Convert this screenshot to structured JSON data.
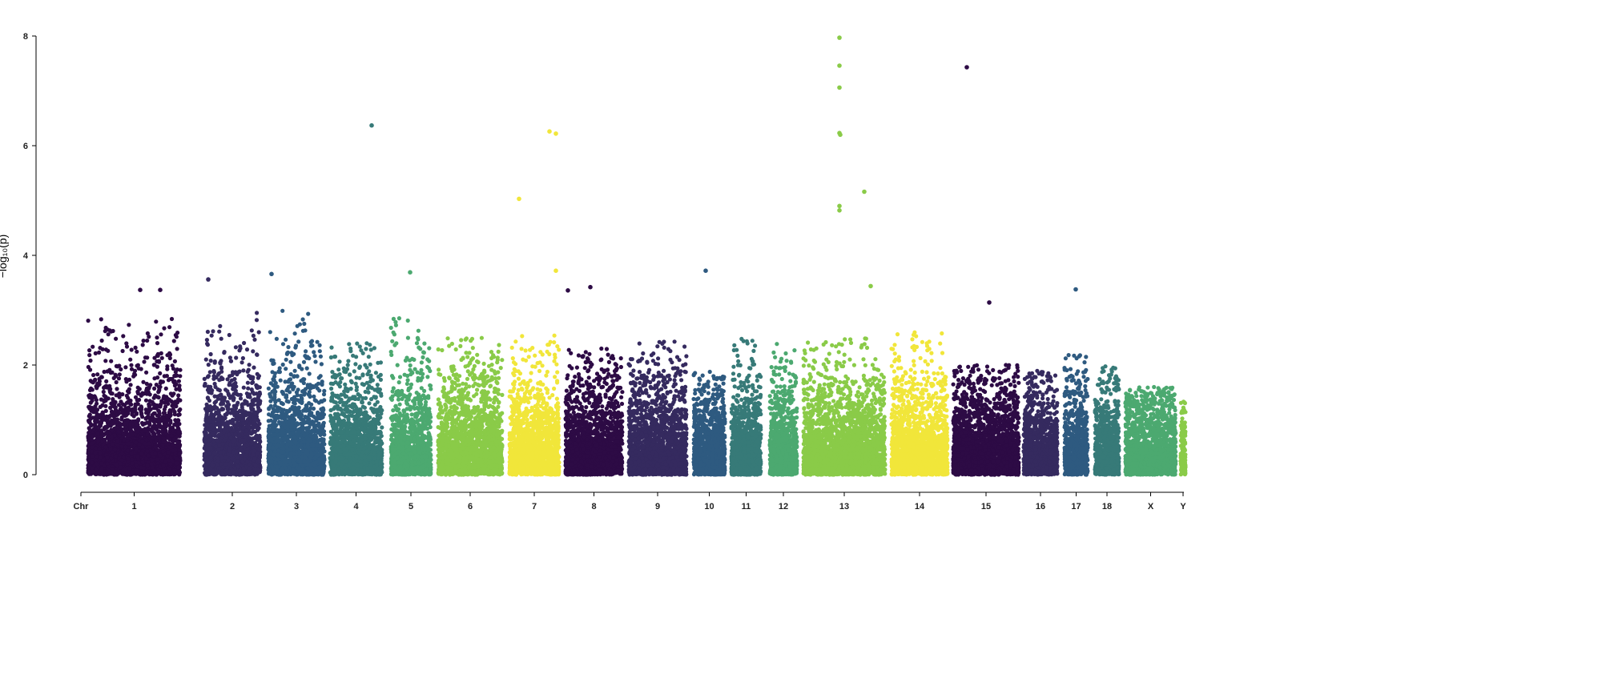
{
  "chart_data": {
    "type": "scatter",
    "subtype": "manhattan",
    "title": "",
    "xlabel": "",
    "ylabel": "−log₁₀(p)",
    "ylim": [
      0,
      8
    ],
    "y_ticks": [
      "0",
      "2",
      "4",
      "6",
      "8"
    ],
    "x_axis_start_label": "Chr",
    "grid": false,
    "legend": "none",
    "chromosomes": [
      {
        "name": "1",
        "span": [
          110,
          225
        ],
        "max": 2.9,
        "color": "#2d0b45"
      },
      {
        "name": "2",
        "span": [
          255,
          325
        ],
        "max": 3.0,
        "color": "#352a5f"
      },
      {
        "name": "3",
        "span": [
          335,
          405
        ],
        "max": 3.0,
        "color": "#2e5a80"
      },
      {
        "name": "4",
        "span": [
          412,
          477
        ],
        "max": 2.4,
        "color": "#377a78"
      },
      {
        "name": "5",
        "span": [
          488,
          538
        ],
        "max": 3.0,
        "color": "#4ca970"
      },
      {
        "name": "6",
        "span": [
          547,
          627
        ],
        "max": 2.5,
        "color": "#8acb48"
      },
      {
        "name": "7",
        "span": [
          636,
          698
        ],
        "max": 2.6,
        "color": "#f1e63a"
      },
      {
        "name": "8",
        "span": [
          706,
          777
        ],
        "max": 2.3,
        "color": "#2d0b45"
      },
      {
        "name": "9",
        "span": [
          785,
          857
        ],
        "max": 2.5,
        "color": "#352a5f"
      },
      {
        "name": "10",
        "span": [
          866,
          905
        ],
        "max": 1.9,
        "color": "#2e5a80"
      },
      {
        "name": "11",
        "span": [
          913,
          950
        ],
        "max": 2.5,
        "color": "#377a78"
      },
      {
        "name": "12",
        "span": [
          961,
          995
        ],
        "max": 2.4,
        "color": "#4ca970"
      },
      {
        "name": "13",
        "span": [
          1003,
          1105
        ],
        "max": 2.5,
        "color": "#8acb48"
      },
      {
        "name": "14",
        "span": [
          1113,
          1183
        ],
        "max": 2.6,
        "color": "#f1e63a"
      },
      {
        "name": "15",
        "span": [
          1190,
          1272
        ],
        "max": 2.0,
        "color": "#2d0b45"
      },
      {
        "name": "16",
        "span": [
          1278,
          1320
        ],
        "max": 1.9,
        "color": "#352a5f"
      },
      {
        "name": "17",
        "span": [
          1329,
          1358
        ],
        "max": 2.3,
        "color": "#2e5a80"
      },
      {
        "name": "18",
        "span": [
          1367,
          1397
        ],
        "max": 2.0,
        "color": "#377a78"
      },
      {
        "name": "X",
        "span": [
          1405,
          1468
        ],
        "max": 1.6,
        "color": "#4ca970"
      },
      {
        "name": "Y",
        "span": [
          1474,
          1480
        ],
        "max": 1.4,
        "color": "#8acb48"
      }
    ],
    "peaks": [
      {
        "chr": "1",
        "pos": 175,
        "y": 3.37
      },
      {
        "chr": "1",
        "pos": 200,
        "y": 3.37
      },
      {
        "chr": "2",
        "pos": 260,
        "y": 3.56
      },
      {
        "chr": "3",
        "pos": 339,
        "y": 3.66
      },
      {
        "chr": "4",
        "pos": 464,
        "y": 6.37
      },
      {
        "chr": "5",
        "pos": 512,
        "y": 3.69
      },
      {
        "chr": "7",
        "pos": 648,
        "y": 5.03
      },
      {
        "chr": "7",
        "pos": 686,
        "y": 6.26
      },
      {
        "chr": "7",
        "pos": 694,
        "y": 6.22
      },
      {
        "chr": "7",
        "pos": 694,
        "y": 3.72
      },
      {
        "chr": "8",
        "pos": 709,
        "y": 3.36
      },
      {
        "chr": "8",
        "pos": 737,
        "y": 3.42
      },
      {
        "chr": "10",
        "pos": 881,
        "y": 3.72
      },
      {
        "chr": "13",
        "pos": 1048,
        "y": 7.97
      },
      {
        "chr": "13",
        "pos": 1048,
        "y": 7.46
      },
      {
        "chr": "13",
        "pos": 1048,
        "y": 7.06
      },
      {
        "chr": "13",
        "pos": 1048,
        "y": 6.23
      },
      {
        "chr": "13",
        "pos": 1049,
        "y": 6.2
      },
      {
        "chr": "13",
        "pos": 1048,
        "y": 4.9
      },
      {
        "chr": "13",
        "pos": 1048,
        "y": 4.82
      },
      {
        "chr": "13",
        "pos": 1079,
        "y": 5.16
      },
      {
        "chr": "13",
        "pos": 1087,
        "y": 3.44
      },
      {
        "chr": "15",
        "pos": 1207,
        "y": 7.43
      },
      {
        "chr": "15",
        "pos": 1235,
        "y": 3.14
      },
      {
        "chr": "17",
        "pos": 1343,
        "y": 3.38
      }
    ]
  }
}
